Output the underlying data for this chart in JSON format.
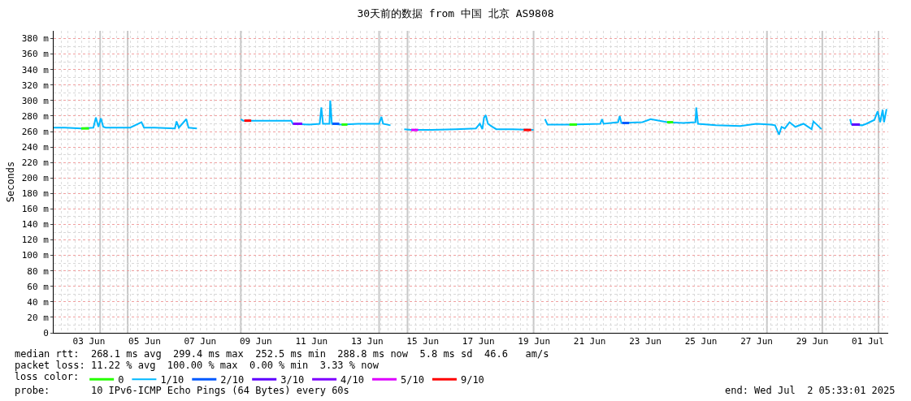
{
  "chart_data": {
    "type": "line",
    "title": "30天前的数据 from 中国 北京 AS9808",
    "ylabel": "Seconds",
    "legend_title": "loss color:",
    "legend": "bottom",
    "grid": true,
    "marker": "none",
    "line_style": "solid",
    "xlim": [
      "2025-06-02T05:33",
      "2025-07-02T05:33"
    ],
    "xticks": [
      {
        "value": "2025-06-03T12:00",
        "label": "03 Jun"
      },
      {
        "value": "2025-06-05T12:00",
        "label": "05 Jun"
      },
      {
        "value": "2025-06-07T12:00",
        "label": "07 Jun"
      },
      {
        "value": "2025-06-09T12:00",
        "label": "09 Jun"
      },
      {
        "value": "2025-06-11T12:00",
        "label": "11 Jun"
      },
      {
        "value": "2025-06-13T12:00",
        "label": "13 Jun"
      },
      {
        "value": "2025-06-15T12:00",
        "label": "15 Jun"
      },
      {
        "value": "2025-06-17T12:00",
        "label": "17 Jun"
      },
      {
        "value": "2025-06-19T12:00",
        "label": "19 Jun"
      },
      {
        "value": "2025-06-21T12:00",
        "label": "21 Jun"
      },
      {
        "value": "2025-06-23T12:00",
        "label": "23 Jun"
      },
      {
        "value": "2025-06-25T12:00",
        "label": "25 Jun"
      },
      {
        "value": "2025-06-27T12:00",
        "label": "27 Jun"
      },
      {
        "value": "2025-06-29T12:00",
        "label": "29 Jun"
      },
      {
        "value": "2025-07-01T12:00",
        "label": "01 Jul"
      }
    ],
    "ylim": [
      0,
      390
    ],
    "yticks": [
      0,
      {
        "value": 20,
        "label": "20 m"
      },
      {
        "value": 40,
        "label": "40 m"
      },
      {
        "value": 60,
        "label": "60 m"
      },
      {
        "value": 80,
        "label": "80 m"
      },
      {
        "value": 100,
        "label": "100 m"
      },
      {
        "value": 120,
        "label": "120 m"
      },
      {
        "value": 140,
        "label": "140 m"
      },
      {
        "value": 160,
        "label": "160 m"
      },
      {
        "value": 180,
        "label": "180 m"
      },
      {
        "value": 200,
        "label": "200 m"
      },
      {
        "value": 220,
        "label": "220 m"
      },
      {
        "value": 240,
        "label": "240 m"
      },
      {
        "value": 260,
        "label": "260 m"
      },
      {
        "value": 280,
        "label": "280 m"
      },
      {
        "value": 300,
        "label": "300 m"
      },
      {
        "value": 320,
        "label": "320 m"
      },
      {
        "value": 340,
        "label": "340 m"
      },
      {
        "value": 360,
        "label": "360 m"
      },
      {
        "value": 380,
        "label": "380 m"
      }
    ],
    "ref_lines": [
      {
        "axis": "x",
        "value": "2025-06-03T21:40",
        "color": "#c8c8c8"
      },
      {
        "axis": "x",
        "value": "2025-06-04T21:25",
        "color": "#c8c8c8"
      },
      {
        "axis": "x",
        "value": "2025-06-08T23:00",
        "color": "#c8c8c8"
      },
      {
        "axis": "x",
        "value": "2025-06-13T22:20",
        "color": "#c8c8c8"
      },
      {
        "axis": "x",
        "value": "2025-06-14T22:50",
        "color": "#c8c8c8"
      },
      {
        "axis": "x",
        "value": "2025-06-19T11:35",
        "color": "#c8c8c8"
      },
      {
        "axis": "x",
        "value": "2025-06-27T20:55",
        "color": "#c8c8c8"
      },
      {
        "axis": "x",
        "value": "2025-06-29T20:40",
        "color": "#c8c8c8"
      },
      {
        "axis": "x",
        "value": "2025-07-01T21:10",
        "color": "#c8c8c8"
      }
    ],
    "series": [
      {
        "name": "0",
        "color": "#26ff00",
        "x": [
          "2025-06-03T05:25",
          "2025-06-03T12:00",
          null,
          "2025-06-12T14:00",
          "2025-06-12T19:00",
          null,
          "2025-06-20T18:30",
          "2025-06-21T01:00",
          null,
          "2025-06-24T06:45",
          "2025-06-24T12:00"
        ],
        "values": [
          264,
          264,
          null,
          269,
          269,
          null,
          269,
          269,
          null,
          272,
          272
        ]
      },
      {
        "name": "1/10",
        "color": "#00b8ff",
        "x": [
          "2025-06-02T05:33",
          "2025-06-02T15:20",
          "2025-06-03T05:25",
          "2025-06-03T15:50",
          "2025-06-03T18:00",
          "2025-06-03T20:10",
          "2025-06-03T22:20",
          "2025-06-04T00:20",
          "2025-06-04T02:25",
          "2025-06-04T16:35",
          "2025-06-04T23:35",
          "2025-06-05T09:20",
          "2025-06-05T11:30",
          "2025-06-05T20:40",
          "2025-06-06T14:10",
          "2025-06-06T15:35",
          "2025-06-06T17:35",
          "2025-06-07T00:00",
          "2025-06-07T01:55",
          "2025-06-07T09:10",
          "2025-06-08T12:00",
          "2025-06-08T23:05",
          "2025-06-09T01:00",
          "2025-06-09T22:50",
          "2025-06-10T18:30",
          "2025-06-10T19:55",
          "2025-06-11T09:55",
          "2025-06-11T19:05",
          "2025-06-11T20:30",
          "2025-06-11T21:55",
          "2025-06-12T03:30",
          "2025-06-12T04:10",
          "2025-06-12T05:35",
          "2025-06-12T14:00",
          "2025-06-13T04:10",
          "2025-06-13T22:20",
          "2025-06-14T00:20",
          "2025-06-14T01:45",
          "2025-06-14T08:10",
          "2025-06-14T14:00",
          "2025-06-14T20:00",
          "2025-06-15T01:45",
          "2025-06-15T19:15",
          "2025-06-16T16:10",
          "2025-06-17T09:50",
          "2025-06-17T13:15",
          "2025-06-17T15:25",
          "2025-06-17T16:50",
          "2025-06-17T18:20",
          "2025-06-17T20:15",
          "2025-06-17T23:05",
          "2025-06-18T03:25",
          "2025-06-18T17:20",
          "2025-06-19T11:35",
          "2025-06-19T16:00",
          "2025-06-19T21:25",
          "2025-06-19T23:35",
          "2025-06-20T18:30",
          "2025-06-21T21:10",
          "2025-06-21T22:35",
          "2025-06-22T00:00",
          "2025-06-22T12:30",
          "2025-06-22T13:55",
          "2025-06-22T15:20",
          "2025-06-23T09:35",
          "2025-06-23T16:35",
          "2025-06-24T06:45",
          "2025-06-24T20:40",
          "2025-06-25T07:15",
          "2025-06-25T07:55",
          "2025-06-25T09:25",
          "2025-06-26T00:45",
          "2025-06-26T21:55",
          "2025-06-27T11:50",
          "2025-06-28T00:20",
          "2025-06-28T03:55",
          "2025-06-28T07:20",
          "2025-06-28T09:30",
          "2025-06-28T12:20",
          "2025-06-28T16:25",
          "2025-06-28T21:25",
          "2025-06-29T04:25",
          "2025-06-29T11:25",
          "2025-06-29T13:00",
          "2025-06-29T16:35",
          "2025-06-29T20:00",
          "2025-06-30T08:00",
          "2025-06-30T20:40",
          "2025-06-30T21:50",
          "2025-07-01T07:00",
          "2025-07-01T10:35",
          "2025-07-01T17:35",
          "2025-07-01T20:25",
          "2025-07-01T22:35",
          "2025-07-02T00:45",
          "2025-07-02T01:55",
          "2025-07-02T04:05"
        ],
        "values": [
          265,
          265,
          264,
          265,
          278,
          266,
          277,
          266,
          265,
          265,
          265,
          272,
          265,
          265,
          264,
          273,
          265,
          276,
          265,
          264,
          null,
          276,
          274,
          274,
          274,
          270,
          269,
          270,
          291,
          270,
          270,
          300,
          270,
          269,
          270,
          270,
          279,
          270,
          268,
          null,
          263,
          262,
          262,
          263,
          264,
          270,
          263,
          278,
          281,
          270,
          267,
          263,
          263,
          262,
          null,
          276,
          269,
          269,
          270,
          276,
          270,
          272,
          280,
          271,
          272,
          276,
          272,
          271,
          272,
          291,
          270,
          268,
          267,
          270,
          269,
          268,
          256,
          266,
          264,
          272,
          266,
          270,
          263,
          273,
          268,
          263,
          null,
          276,
          269,
          268,
          270,
          275,
          286,
          272,
          288,
          272,
          289
        ]
      },
      {
        "name": "2/10",
        "color": "#0059ff",
        "x": [
          "2025-06-12T06:00",
          "2025-06-12T12:00",
          null,
          "2025-06-22T16:00",
          "2025-06-22T22:00"
        ],
        "values": [
          270,
          270,
          null,
          271,
          271
        ]
      },
      {
        "name": "3/10",
        "color": "#5e00ff",
        "x": [
          "2025-06-30T22:00",
          "2025-07-01T05:00"
        ],
        "values": [
          269,
          269
        ]
      },
      {
        "name": "4/10",
        "color": "#7e00ff",
        "x": [
          "2025-06-10T20:00",
          "2025-06-11T04:00"
        ],
        "values": [
          270,
          270
        ]
      },
      {
        "name": "5/10",
        "color": "#dd00ff",
        "x": [
          "2025-06-15T02:00",
          "2025-06-15T08:00"
        ],
        "values": [
          262,
          262
        ]
      },
      {
        "name": "9/10",
        "color": "#ff0000",
        "x": [
          "2025-06-09T02:00",
          "2025-06-09T08:00",
          null,
          "2025-06-19T03:00",
          "2025-06-19T09:30"
        ],
        "values": [
          274,
          274,
          null,
          262,
          262
        ]
      }
    ],
    "annotations": [
      "median rtt:  268.1 ms avg  299.4 ms max  252.5 ms min  288.8 ms now  5.8 ms sd  46.6   am/s",
      "packet loss: 11.22 % avg  100.00 % max  0.00 % min  3.33 % now",
      "probe:       10 IPv6-ICMP Echo Pings (64 Bytes) every 60s",
      "end: Wed Jul  2 05:33:01 2025"
    ]
  }
}
